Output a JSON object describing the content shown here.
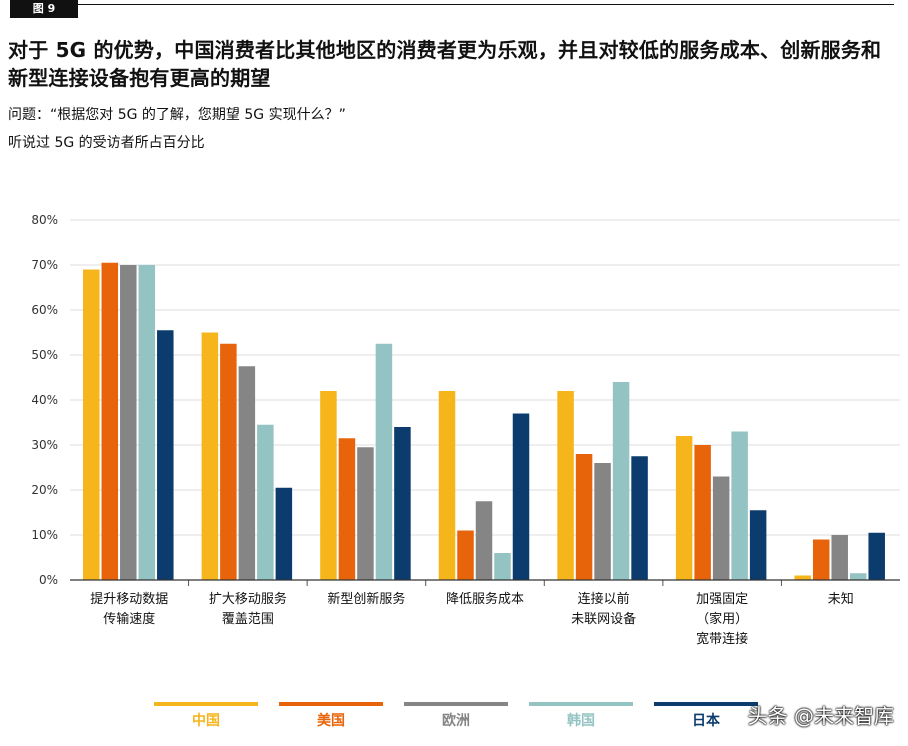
{
  "figure_label": "图 9",
  "title": "对于 5G 的优势，中国消费者比其他地区的消费者更为乐观，并且对较低的服务成本、创新服务和新型连接设备抱有更高的期望",
  "question": "问题：“根据您对 5G 的了解，您期望 5G 实现什么？”",
  "note": "听说过 5G 的受访者所占百分比",
  "watermark": "头条 @未来智库",
  "chart_data": {
    "type": "bar",
    "ylim": [
      0,
      80
    ],
    "yticks": [
      "0%",
      "10%",
      "20%",
      "30%",
      "40%",
      "50%",
      "60%",
      "70%",
      "80%"
    ],
    "grid": true,
    "legend_position": "bottom",
    "categories": [
      [
        "提升移动数据",
        "传输速度"
      ],
      [
        "扩大移动服务",
        "覆盖范围"
      ],
      [
        "新型创新服务"
      ],
      [
        "降低服务成本"
      ],
      [
        "连接以前",
        "未联网设备"
      ],
      [
        "加强固定",
        "（家用）",
        "宽带连接"
      ],
      [
        "未知"
      ]
    ],
    "series": [
      {
        "name": "中国",
        "color": "#F6B51A",
        "values": [
          69,
          55,
          42,
          42,
          42,
          32,
          1
        ]
      },
      {
        "name": "美国",
        "color": "#E8640A",
        "values": [
          70.5,
          52.5,
          31.5,
          11,
          28,
          30,
          9
        ]
      },
      {
        "name": "欧洲",
        "color": "#858585",
        "values": [
          70,
          47.5,
          29.5,
          17.5,
          26,
          23,
          10
        ]
      },
      {
        "name": "韩国",
        "color": "#93C4C3",
        "values": [
          70,
          34.5,
          52.5,
          6,
          44,
          33,
          1.5
        ]
      },
      {
        "name": "日本",
        "color": "#0C3C6E",
        "values": [
          55.5,
          20.5,
          34,
          37,
          27.5,
          15.5,
          10.5
        ]
      }
    ]
  }
}
